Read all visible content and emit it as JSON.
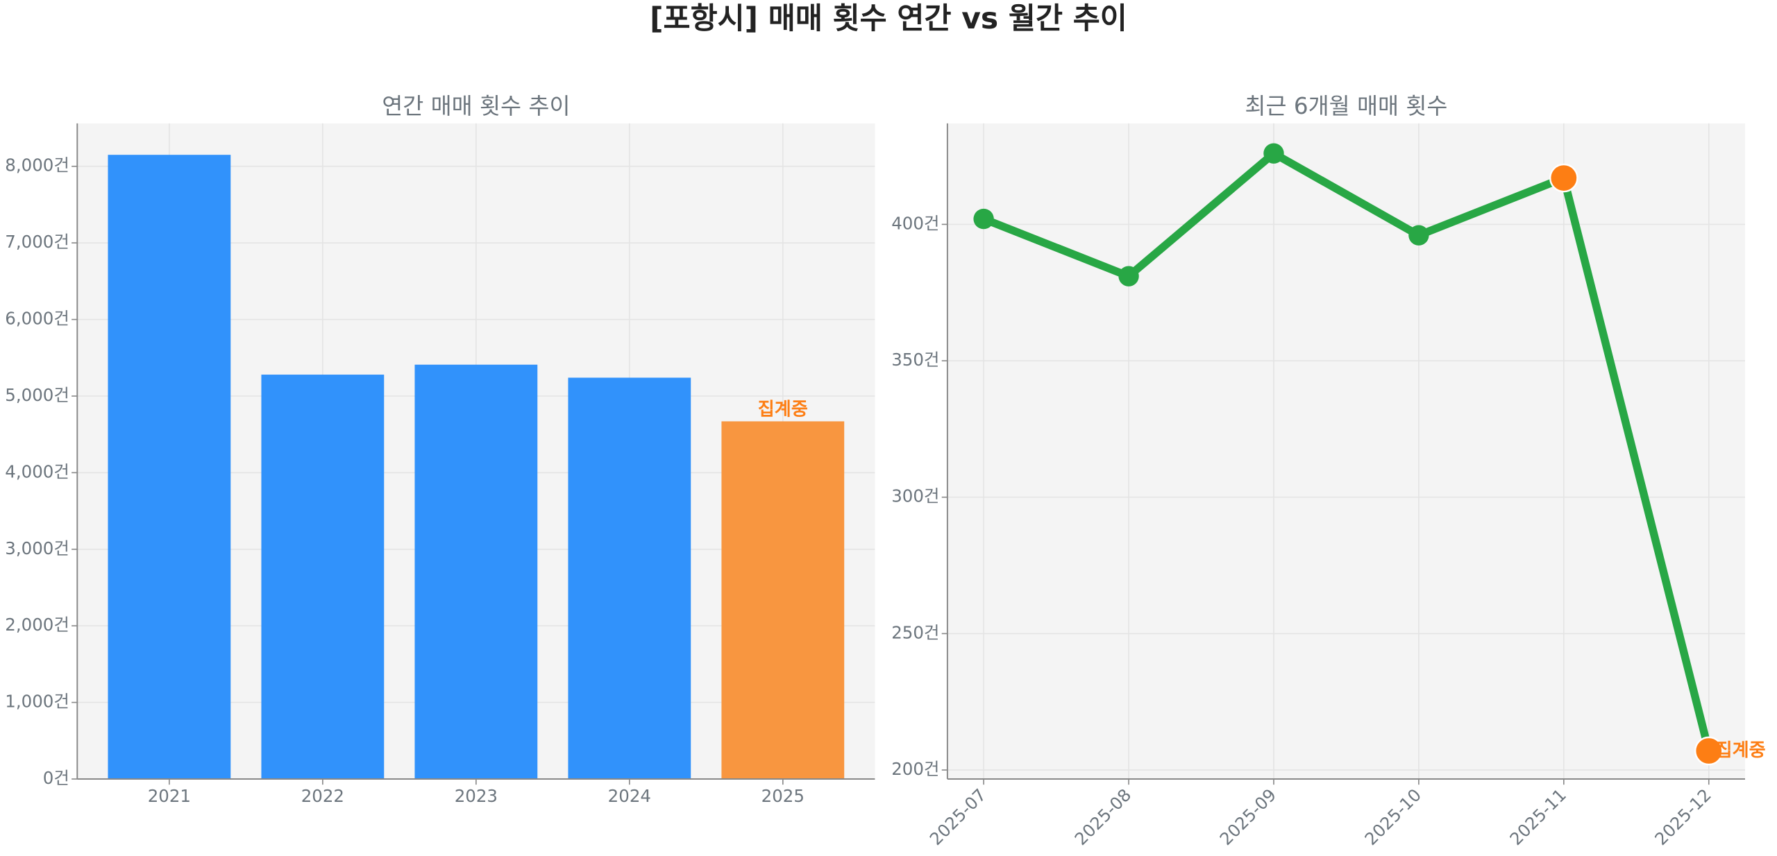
{
  "title": "[포항시] 매매 횟수 연간 vs 월간 추이",
  "chart_data": [
    {
      "type": "bar",
      "title": "연간 매매 횟수 추이",
      "categories": [
        "2021",
        "2022",
        "2023",
        "2024",
        "2025"
      ],
      "values": [
        8150,
        5280,
        5410,
        5240,
        4670
      ],
      "colors": [
        "#3192fb",
        "#3192fb",
        "#3192fb",
        "#3192fb",
        "#f89640"
      ],
      "annotation": {
        "text": "집계중",
        "index": 4,
        "color": "#fd7e14"
      },
      "ylim": [
        0,
        8560
      ],
      "yticks": [
        {
          "value": 0,
          "label": "0건"
        },
        {
          "value": 1000,
          "label": "1,000건"
        },
        {
          "value": 2000,
          "label": "2,000건"
        },
        {
          "value": 3000,
          "label": "3,000건"
        },
        {
          "value": 4000,
          "label": "4,000건"
        },
        {
          "value": 5000,
          "label": "5,000건"
        },
        {
          "value": 6000,
          "label": "6,000건"
        },
        {
          "value": 7000,
          "label": "7,000건"
        },
        {
          "value": 8000,
          "label": "8,000건"
        }
      ],
      "grid": true
    },
    {
      "type": "line",
      "title": "최근 6개월 매매 횟수",
      "categories": [
        "2025-07",
        "2025-08",
        "2025-09",
        "2025-10",
        "2025-11",
        "2025-12"
      ],
      "series": [
        {
          "name": "매매 횟수",
          "color": "#28a745",
          "values": [
            402,
            381,
            426,
            396,
            417,
            207
          ],
          "marker_colors": [
            "#28a745",
            "#28a745",
            "#28a745",
            "#28a745",
            "#fd7e14",
            "#fd7e14"
          ]
        }
      ],
      "annotation": {
        "text": "집계중",
        "index": 5,
        "color": "#fd7e14"
      },
      "ylim": [
        196.7,
        437
      ],
      "yticks": [
        {
          "value": 200,
          "label": "200건"
        },
        {
          "value": 250,
          "label": "250건"
        },
        {
          "value": 300,
          "label": "300건"
        },
        {
          "value": 350,
          "label": "350건"
        },
        {
          "value": 400,
          "label": "400건"
        }
      ],
      "grid": true
    }
  ]
}
